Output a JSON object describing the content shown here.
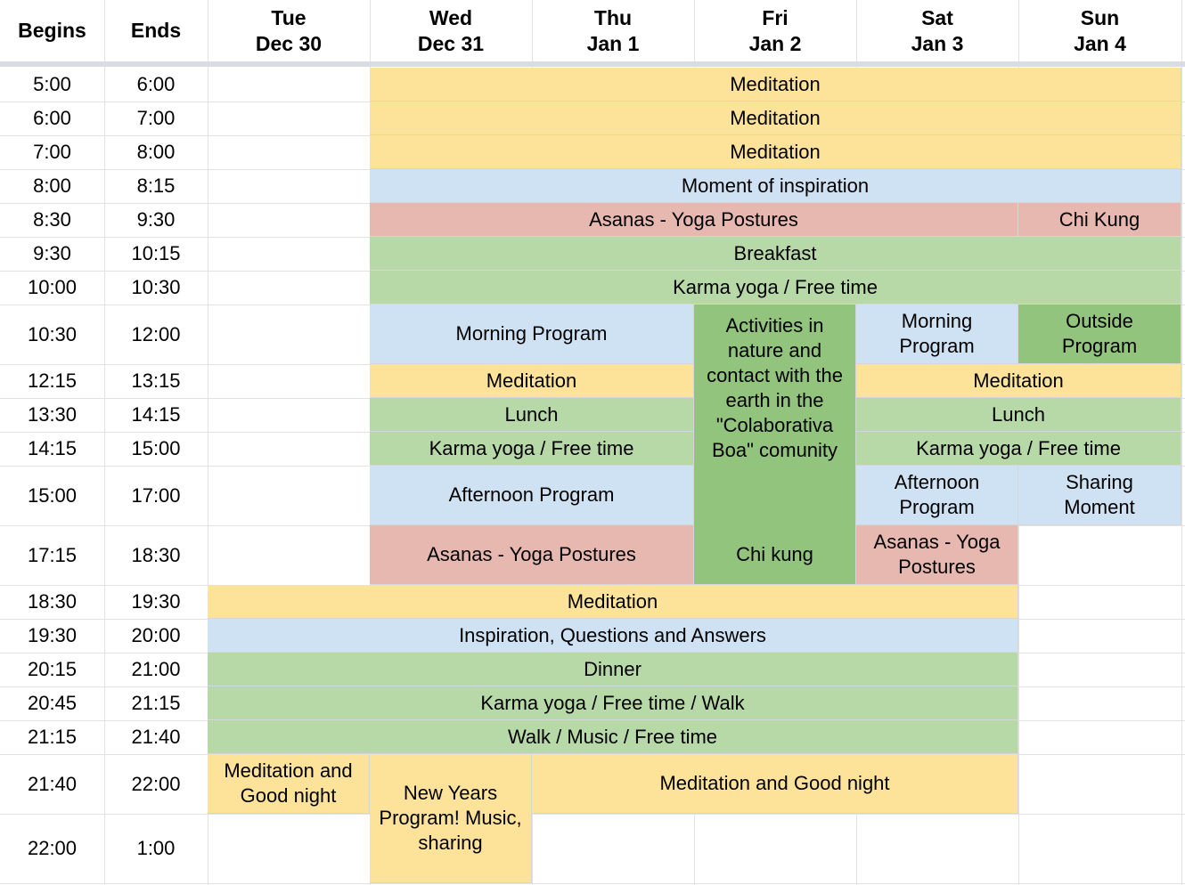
{
  "colors": {
    "meditation": "#fde39a",
    "program": "#cfe2f3",
    "asanas": "#e7b8b0",
    "food_karma": "#b7d9a8",
    "outside": "#93c47d"
  },
  "header": {
    "begins": "Begins",
    "ends": "Ends",
    "days": [
      {
        "dow": "Tue",
        "date": "Dec 30"
      },
      {
        "dow": "Wed",
        "date": "Dec 31"
      },
      {
        "dow": "Thu",
        "date": "Jan 1"
      },
      {
        "dow": "Fri",
        "date": "Jan 2"
      },
      {
        "dow": "Sat",
        "date": "Jan 3"
      },
      {
        "dow": "Sun",
        "date": "Jan 4"
      }
    ]
  },
  "times": [
    {
      "begins": "5:00",
      "ends": "6:00"
    },
    {
      "begins": "6:00",
      "ends": "7:00"
    },
    {
      "begins": "7:00",
      "ends": "8:00"
    },
    {
      "begins": "8:00",
      "ends": "8:15"
    },
    {
      "begins": "8:30",
      "ends": "9:30"
    },
    {
      "begins": "9:30",
      "ends": "10:15"
    },
    {
      "begins": "10:00",
      "ends": "10:30"
    },
    {
      "begins": "10:30",
      "ends": "12:00"
    },
    {
      "begins": "12:15",
      "ends": "13:15"
    },
    {
      "begins": "13:30",
      "ends": "14:15"
    },
    {
      "begins": "14:15",
      "ends": "15:00"
    },
    {
      "begins": "15:00",
      "ends": "17:00"
    },
    {
      "begins": "17:15",
      "ends": "18:30"
    },
    {
      "begins": "18:30",
      "ends": "19:30"
    },
    {
      "begins": "19:30",
      "ends": "20:00"
    },
    {
      "begins": "20:15",
      "ends": "21:00"
    },
    {
      "begins": "20:45",
      "ends": "21:15"
    },
    {
      "begins": "21:15",
      "ends": "21:40"
    },
    {
      "begins": "21:40",
      "ends": "22:00"
    },
    {
      "begins": "22:00",
      "ends": "1:00"
    }
  ],
  "events": {
    "meditation_5": "Meditation",
    "meditation_6": "Meditation",
    "meditation_7": "Meditation",
    "moment_inspiration": "Moment of inspiration",
    "asanas_morning": "Asanas - Yoga Postures",
    "chi_kung_sun": "Chi Kung",
    "breakfast": "Breakfast",
    "karma_morning": "Karma yoga / Free time",
    "morning_program_wt": "Morning Program",
    "activities_nature": "Activities in nature and contact with the earth in the \"Colaborativa Boa\" comunity",
    "morning_program_sat": "Morning Program",
    "outside_program_sun": "Outside Program",
    "meditation_noon_wt": "Meditation",
    "meditation_noon_ss": "Meditation",
    "lunch_wt": "Lunch",
    "lunch_ss": "Lunch",
    "karma_afternoon_wt": "Karma yoga / Free time",
    "karma_afternoon_ss": "Karma yoga / Free time",
    "afternoon_program_wt": "Afternoon Program",
    "afternoon_program_sat": "Afternoon Program",
    "sharing_moment_sun": "Sharing Moment",
    "asanas_evening_wt": "Asanas - Yoga Postures",
    "chi_kung_fri": "Chi kung",
    "asanas_evening_sat": "Asanas - Yoga Postures",
    "meditation_evening": "Meditation",
    "inspiration_qa": "Inspiration, Questions and Answers",
    "dinner": "Dinner",
    "karma_walk": "Karma yoga / Free time / Walk",
    "walk_music": "Walk / Music / Free time",
    "meditation_goodnight_tue": "Meditation and Good night",
    "new_years": "New Years Program! Music, sharing",
    "meditation_goodnight_rest": "Meditation and Good night"
  }
}
